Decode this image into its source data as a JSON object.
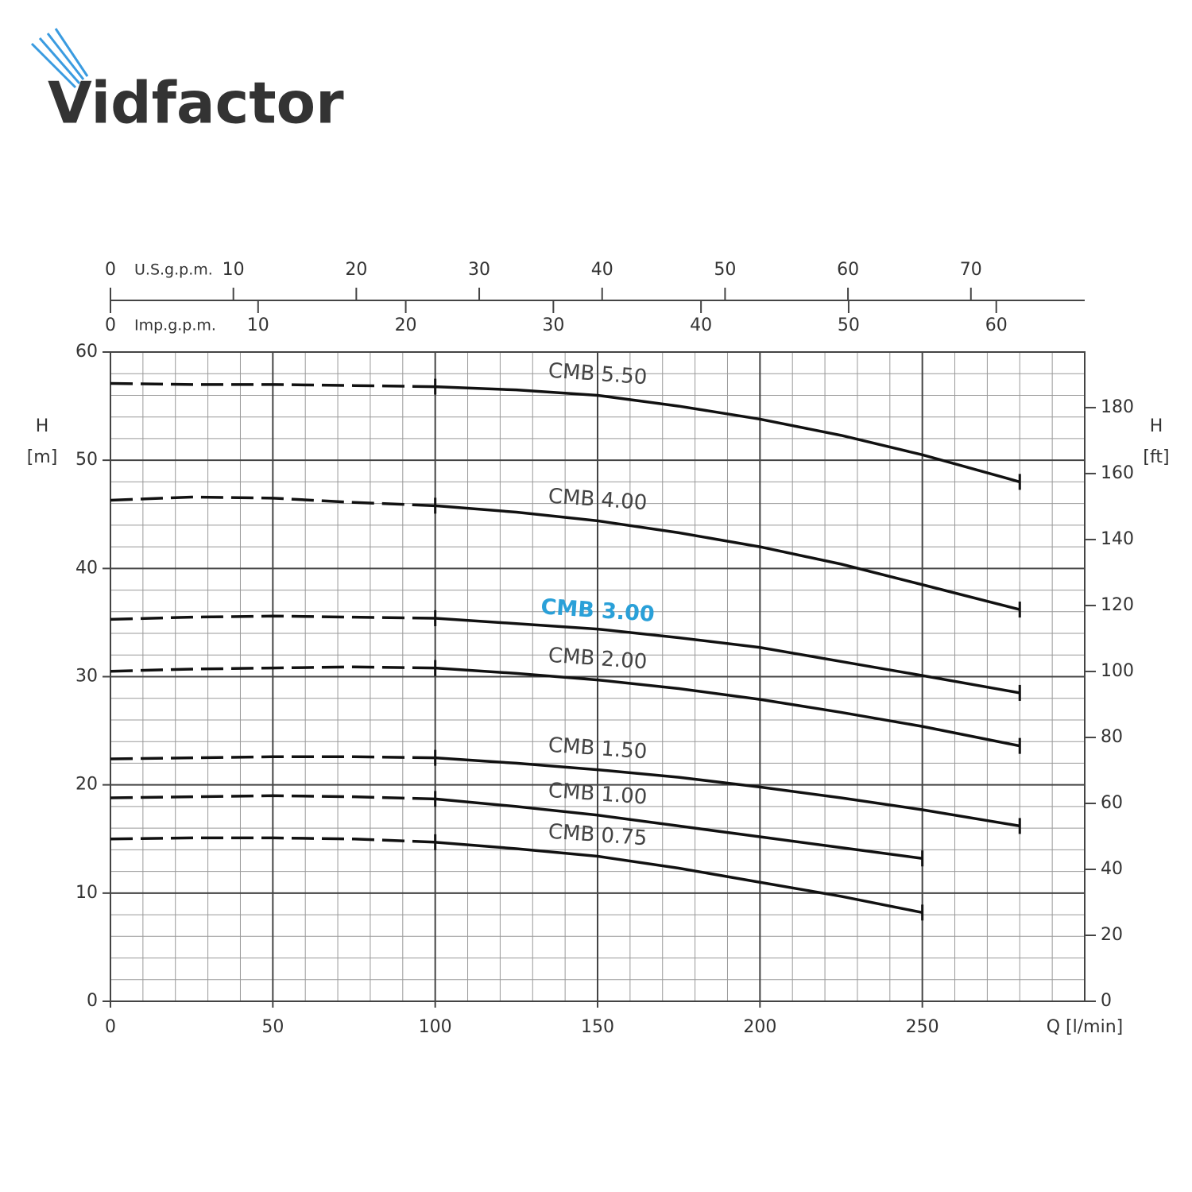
{
  "logo": "Vidfactor",
  "chart_data": {
    "type": "line",
    "x_label": "Q [l/min]",
    "y_label": "H",
    "y_unit": "[m]",
    "y2_label": "H",
    "y2_unit": "[ft]",
    "xlim": [
      0,
      300
    ],
    "xticks": [
      0,
      50,
      100,
      150,
      200,
      250
    ],
    "ylim": [
      0,
      60
    ],
    "yticks": [
      0,
      10,
      20,
      30,
      40,
      50,
      60
    ],
    "y2lim": [
      0,
      196.85
    ],
    "y2ticks": [
      0,
      20,
      40,
      60,
      80,
      100,
      120,
      140,
      160,
      180
    ],
    "top_axes": [
      {
        "label": "U.S.g.p.m.",
        "lim": [
          0,
          79.26
        ],
        "ticks": [
          0,
          10,
          20,
          30,
          40,
          50,
          60,
          70
        ]
      },
      {
        "label": "Imp.g.p.m.",
        "lim": [
          0,
          65.99
        ],
        "ticks": [
          0,
          10,
          20,
          30,
          40,
          50,
          60
        ]
      }
    ],
    "grid": true,
    "x_minor_step": 10,
    "y_minor_step": 2,
    "dashed_xlim": [
      0,
      100
    ],
    "x": [
      0,
      25,
      50,
      75,
      100,
      125,
      150,
      175,
      200,
      225,
      250,
      280
    ],
    "series": [
      {
        "name": "CMB 5.50",
        "color": "#111111",
        "values": [
          57.1,
          57.0,
          57.0,
          56.9,
          56.8,
          56.5,
          56.0,
          55.0,
          53.8,
          52.3,
          50.5,
          48.0
        ]
      },
      {
        "name": "CMB 4.00",
        "color": "#111111",
        "values": [
          46.3,
          46.6,
          46.5,
          46.1,
          45.8,
          45.2,
          44.4,
          43.3,
          42.0,
          40.4,
          38.5,
          36.2
        ]
      },
      {
        "name": "CMB 3.00",
        "color": "#111111",
        "label_color": "#2aa0d8",
        "values": [
          35.3,
          35.5,
          35.6,
          35.5,
          35.4,
          34.9,
          34.4,
          33.6,
          32.7,
          31.4,
          30.1,
          28.5
        ]
      },
      {
        "name": "CMB 2.00",
        "color": "#111111",
        "values": [
          30.5,
          30.7,
          30.8,
          30.9,
          30.8,
          30.3,
          29.7,
          28.9,
          27.9,
          26.7,
          25.4,
          23.6
        ]
      },
      {
        "name": "CMB 1.50",
        "color": "#111111",
        "values": [
          22.4,
          22.5,
          22.6,
          22.6,
          22.5,
          22.0,
          21.4,
          20.7,
          19.8,
          18.8,
          17.7,
          16.2
        ]
      },
      {
        "name": "CMB 1.00",
        "color": "#111111",
        "values": [
          18.8,
          18.9,
          19.0,
          18.9,
          18.7,
          18.0,
          17.2,
          16.2,
          15.2,
          14.2,
          13.2,
          null
        ]
      },
      {
        "name": "CMB 0.75",
        "color": "#111111",
        "values": [
          15.0,
          15.1,
          15.1,
          15.0,
          14.7,
          14.1,
          13.4,
          12.3,
          11.0,
          9.7,
          8.2,
          null
        ]
      }
    ]
  }
}
